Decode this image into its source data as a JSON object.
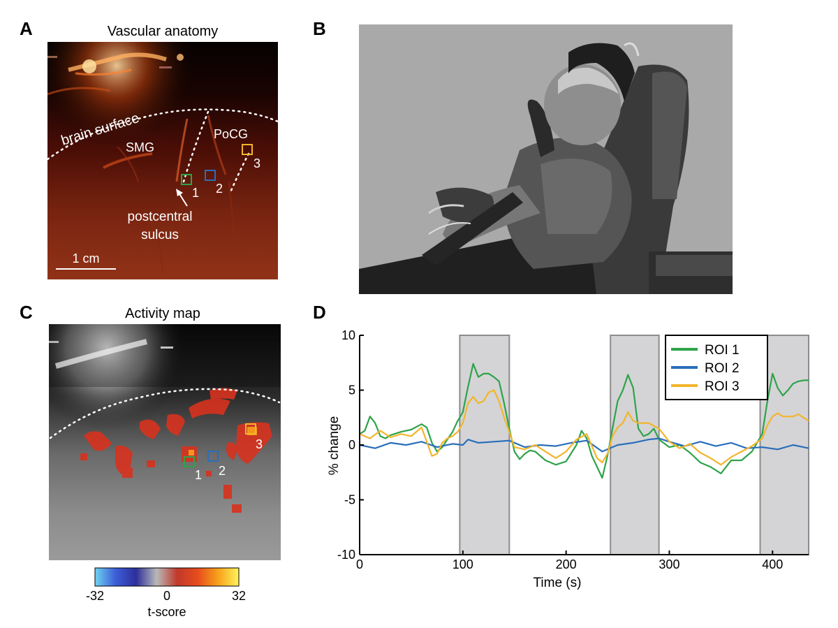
{
  "panels": {
    "a": {
      "letter": "A",
      "title": "Vascular anatomy",
      "brain_surface_label": "brain surface",
      "smg_label": "SMG",
      "pocg_label": "PoCG",
      "postcentral_label": "postcentral",
      "sulcus_label": "sulcus",
      "scale_label": "1 cm",
      "roi_numbers": [
        "1",
        "2",
        "3"
      ]
    },
    "b": {
      "letter": "B"
    },
    "c": {
      "letter": "C",
      "title": "Activity map",
      "roi_numbers": [
        "1",
        "2",
        "3"
      ],
      "colorbar": {
        "min_label": "-32",
        "mid_label": "0",
        "max_label": "32",
        "axis_label": "t-score",
        "stops": [
          "#6fd3f0",
          "#3c5dd8",
          "#2d2f9a",
          "#b9b9b9",
          "#c0392b",
          "#e74c1c",
          "#f7a21c",
          "#fff35a"
        ]
      }
    },
    "d": {
      "letter": "D"
    }
  },
  "chart_data": {
    "type": "line",
    "xlabel": "Time (s)",
    "ylabel": "% change",
    "xlim": [
      0,
      435
    ],
    "ylim": [
      -10,
      10
    ],
    "xticks": [
      0,
      100,
      200,
      300,
      400
    ],
    "yticks": [
      -10,
      -5,
      0,
      5,
      10
    ],
    "grid": false,
    "legend_position": "top-right",
    "stimulus_blocks": [
      [
        97,
        145
      ],
      [
        243,
        290
      ],
      [
        388,
        435
      ]
    ],
    "stimulus_color": "#d4d4d6",
    "series": [
      {
        "name": "ROI 1",
        "color": "#2ea34a",
        "x": [
          0,
          5,
          10,
          15,
          20,
          25,
          30,
          40,
          50,
          60,
          65,
          70,
          75,
          80,
          85,
          90,
          95,
          100,
          105,
          110,
          115,
          120,
          125,
          130,
          135,
          140,
          145,
          150,
          155,
          160,
          165,
          170,
          180,
          190,
          200,
          210,
          215,
          220,
          225,
          230,
          235,
          240,
          245,
          250,
          255,
          260,
          265,
          270,
          275,
          280,
          285,
          290,
          300,
          310,
          320,
          330,
          340,
          350,
          360,
          370,
          380,
          390,
          395,
          400,
          405,
          410,
          415,
          420,
          425,
          430,
          435
        ],
        "y": [
          1.0,
          1.3,
          2.6,
          2.0,
          0.8,
          0.6,
          0.9,
          1.2,
          1.4,
          1.9,
          1.6,
          0.2,
          -0.6,
          -0.2,
          0.5,
          1.2,
          2.2,
          3.0,
          5.3,
          7.4,
          6.2,
          6.5,
          6.5,
          6.2,
          5.8,
          3.8,
          1.5,
          -0.6,
          -1.3,
          -0.8,
          -0.5,
          -0.6,
          -1.4,
          -1.8,
          -1.5,
          0.0,
          1.3,
          0.6,
          -1.0,
          -2.0,
          -3.0,
          -1.0,
          1.5,
          4.0,
          5.0,
          6.4,
          5.2,
          1.5,
          0.8,
          1.0,
          1.5,
          0.5,
          -0.2,
          0.0,
          -0.7,
          -1.6,
          -2.0,
          -2.6,
          -1.4,
          -1.4,
          -0.6,
          1.0,
          4.0,
          6.5,
          5.2,
          4.5,
          5.0,
          5.6,
          5.8,
          5.9,
          5.9
        ]
      },
      {
        "name": "ROI 2",
        "color": "#2a6ebb",
        "x": [
          0,
          15,
          30,
          45,
          60,
          75,
          90,
          100,
          105,
          115,
          130,
          145,
          160,
          175,
          190,
          205,
          220,
          235,
          250,
          265,
          280,
          290,
          300,
          315,
          330,
          345,
          360,
          375,
          390,
          405,
          420,
          435
        ],
        "y": [
          0.0,
          -0.3,
          0.2,
          0.0,
          0.3,
          -0.2,
          0.1,
          0.0,
          0.5,
          0.2,
          0.3,
          0.4,
          -0.2,
          0.0,
          -0.1,
          0.2,
          0.4,
          -0.6,
          0.0,
          0.2,
          0.5,
          0.6,
          0.3,
          -0.1,
          0.3,
          -0.1,
          0.2,
          -0.3,
          -0.2,
          -0.4,
          0.0,
          -0.3
        ]
      },
      {
        "name": "ROI 3",
        "color": "#f2b52b",
        "x": [
          0,
          10,
          20,
          30,
          40,
          50,
          60,
          70,
          75,
          80,
          85,
          90,
          95,
          100,
          105,
          110,
          115,
          120,
          125,
          130,
          135,
          140,
          145,
          150,
          160,
          170,
          180,
          190,
          200,
          210,
          220,
          230,
          235,
          240,
          245,
          250,
          255,
          260,
          265,
          270,
          280,
          290,
          300,
          310,
          320,
          330,
          340,
          350,
          360,
          370,
          380,
          390,
          395,
          400,
          405,
          410,
          415,
          420,
          425,
          430,
          435
        ],
        "y": [
          1.0,
          0.6,
          1.3,
          0.7,
          1.0,
          0.8,
          1.6,
          -1.0,
          -0.8,
          0.2,
          0.6,
          0.8,
          1.2,
          2.0,
          3.8,
          4.4,
          3.8,
          4.0,
          4.8,
          5.0,
          4.0,
          2.5,
          1.2,
          -0.2,
          -0.4,
          0.0,
          -0.6,
          -1.2,
          -0.6,
          0.5,
          1.0,
          -1.2,
          -1.6,
          -0.8,
          0.8,
          1.6,
          2.0,
          3.0,
          2.2,
          2.0,
          2.0,
          1.5,
          0.3,
          -0.3,
          0.1,
          -0.7,
          -1.2,
          -1.8,
          -1.1,
          -0.6,
          -0.1,
          0.6,
          1.8,
          2.6,
          2.9,
          2.6,
          2.6,
          2.6,
          2.8,
          2.5,
          2.2
        ]
      }
    ]
  }
}
